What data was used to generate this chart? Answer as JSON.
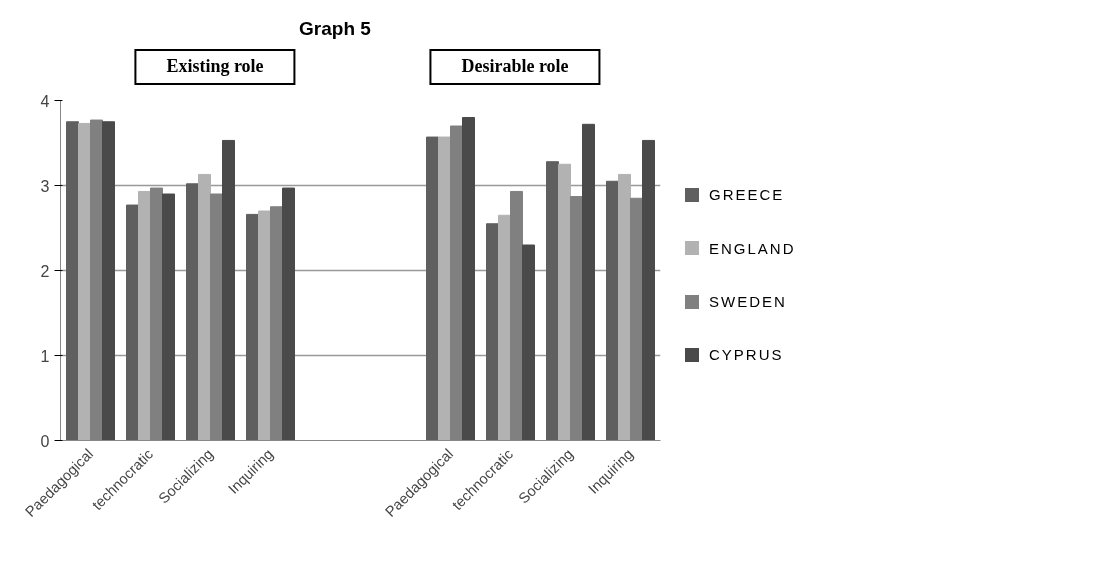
{
  "chart_data": {
    "type": "bar",
    "title": "Graph 5",
    "categories": [
      "Paedagogical",
      "technocratic",
      "Socializing",
      "Inquiring",
      null,
      null,
      "Paedagogical",
      "technocratic",
      "Socializing",
      "Inquiring"
    ],
    "series": [
      {
        "name": "GREECE",
        "color": "#5f5f5f",
        "values": [
          3.75,
          2.77,
          3.02,
          2.66,
          null,
          null,
          3.57,
          2.55,
          3.28,
          3.05
        ]
      },
      {
        "name": "ENGLAND",
        "color": "#b2b2b2",
        "values": [
          3.73,
          2.93,
          3.13,
          2.7,
          null,
          null,
          3.57,
          2.65,
          3.25,
          3.13
        ]
      },
      {
        "name": "SWEDEN",
        "color": "#808080",
        "values": [
          3.77,
          2.97,
          2.9,
          2.75,
          null,
          null,
          3.7,
          2.93,
          2.87,
          2.85
        ]
      },
      {
        "name": "CYPRUS",
        "color": "#4a4a4a",
        "values": [
          3.75,
          2.9,
          3.53,
          2.97,
          null,
          null,
          3.8,
          2.3,
          3.72,
          3.53
        ]
      }
    ],
    "ylim": [
      0,
      4
    ],
    "yticks": [
      0,
      1,
      2,
      3,
      4
    ],
    "grid": "y",
    "legend": "right",
    "annotations": [
      "Existing role",
      "Desirable role"
    ]
  }
}
